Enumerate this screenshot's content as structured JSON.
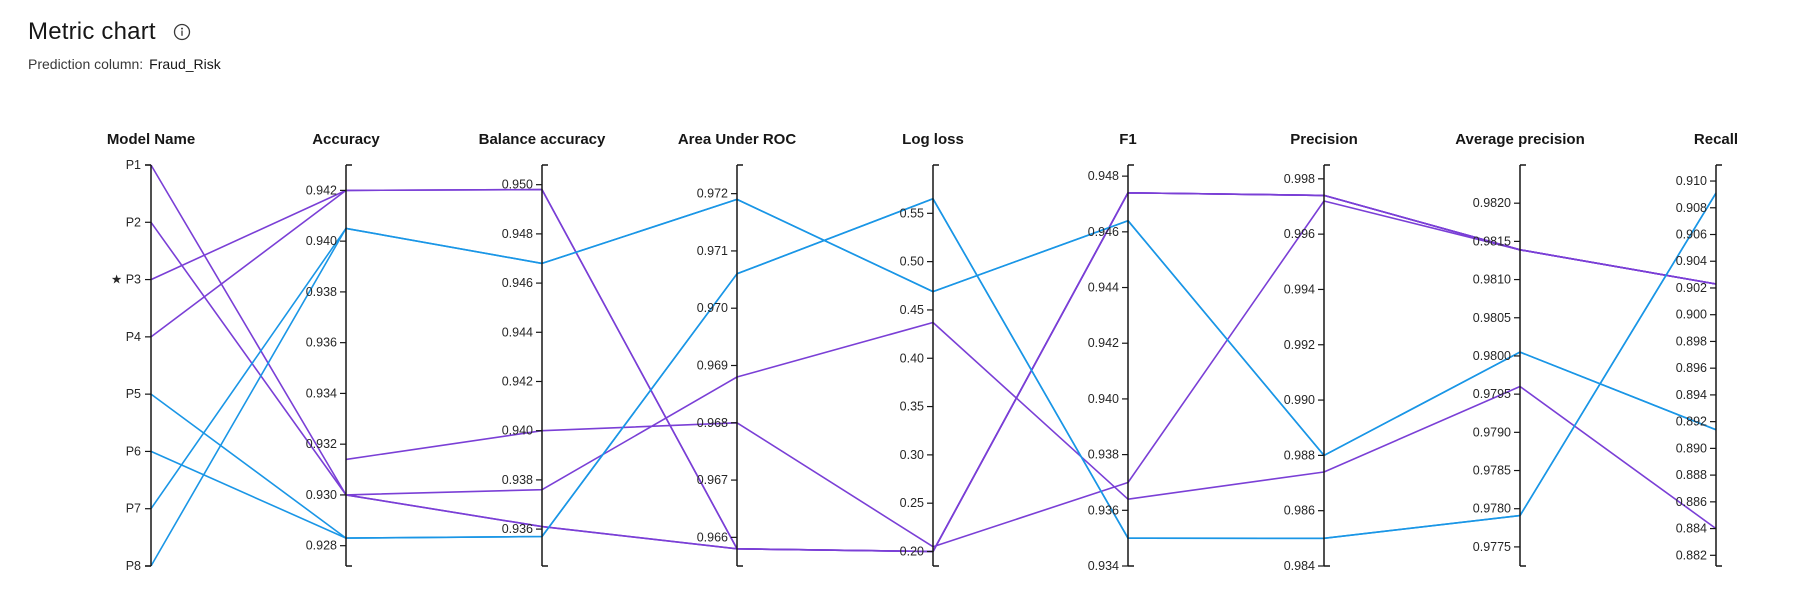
{
  "header": {
    "title": "Metric chart",
    "info_icon": "info-circle-icon",
    "subtitle_label": "Prediction column:",
    "subtitle_value": "Fraud_Risk"
  },
  "colors": {
    "purple": "#7a3fd6",
    "blue": "#1a96e6",
    "axis": "#161616"
  },
  "chart_data": {
    "type": "parallel-coordinates",
    "starred_model": "P3",
    "axes": [
      {
        "key": "model",
        "label": "Model Name",
        "categorical": true,
        "categories": [
          "P1",
          "P2",
          "P3",
          "P4",
          "P5",
          "P6",
          "P7",
          "P8"
        ]
      },
      {
        "key": "accuracy",
        "label": "Accuracy",
        "range": [
          0.9272,
          0.943
        ],
        "ticks": [
          0.928,
          0.93,
          0.932,
          0.934,
          0.936,
          0.938,
          0.94,
          0.942
        ],
        "decimals": 3
      },
      {
        "key": "balance",
        "label": "Balance accuracy",
        "range": [
          0.9345,
          0.9508
        ],
        "ticks": [
          0.936,
          0.938,
          0.94,
          0.942,
          0.944,
          0.946,
          0.948,
          0.95
        ],
        "decimals": 3
      },
      {
        "key": "auroc",
        "label": "Area Under ROC",
        "range": [
          0.9655,
          0.9725
        ],
        "ticks": [
          0.966,
          0.967,
          0.968,
          0.969,
          0.97,
          0.971,
          0.972
        ],
        "decimals": 3
      },
      {
        "key": "logloss",
        "label": "Log loss",
        "range": [
          0.185,
          0.6
        ],
        "ticks": [
          0.2,
          0.25,
          0.3,
          0.35,
          0.4,
          0.45,
          0.5,
          0.55
        ],
        "decimals": 2
      },
      {
        "key": "f1",
        "label": "F1",
        "range": [
          0.934,
          0.9484
        ],
        "ticks": [
          0.934,
          0.936,
          0.938,
          0.94,
          0.942,
          0.944,
          0.946,
          0.948
        ],
        "decimals": 3
      },
      {
        "key": "precision",
        "label": "Precision",
        "range": [
          0.984,
          0.9985
        ],
        "ticks": [
          0.984,
          0.986,
          0.988,
          0.99,
          0.992,
          0.994,
          0.996,
          0.998
        ],
        "decimals": 3
      },
      {
        "key": "avgprec",
        "label": "Average precision",
        "range": [
          0.97725,
          0.9825
        ],
        "ticks": [
          0.9775,
          0.978,
          0.9785,
          0.979,
          0.9795,
          0.98,
          0.9805,
          0.981,
          0.9815,
          0.982
        ],
        "decimals": 4
      },
      {
        "key": "recall",
        "label": "Recall",
        "range": [
          0.8812,
          0.9112
        ],
        "ticks": [
          0.882,
          0.884,
          0.886,
          0.888,
          0.89,
          0.892,
          0.894,
          0.896,
          0.898,
          0.9,
          0.902,
          0.904,
          0.906,
          0.908,
          0.91
        ],
        "decimals": 3
      }
    ],
    "series": [
      {
        "name": "P1",
        "color": "purple",
        "values": {
          "accuracy": 0.93,
          "balance": 0.9361,
          "auroc": 0.9658,
          "logloss": 0.2,
          "f1": 0.9474,
          "precision": 0.9974,
          "avgprec": 0.98139,
          "recall": 0.9023
        }
      },
      {
        "name": "P2",
        "color": "purple",
        "values": {
          "accuracy": 0.93,
          "balance": 0.9361,
          "auroc": 0.9658,
          "logloss": 0.2,
          "f1": 0.9474,
          "precision": 0.9974,
          "avgprec": 0.98139,
          "recall": 0.9023
        }
      },
      {
        "name": "P3",
        "color": "purple",
        "values": {
          "accuracy": 0.942,
          "balance": 0.9498,
          "auroc": 0.9658,
          "logloss": 0.2,
          "f1": 0.9474,
          "precision": 0.9974,
          "avgprec": 0.98139,
          "recall": 0.9023
        }
      },
      {
        "name": "P4",
        "color": "purple",
        "values": {
          "accuracy": 0.942,
          "balance": 0.9498,
          "auroc": 0.9658,
          "logloss": 0.2,
          "f1": 0.9474,
          "precision": 0.9974,
          "avgprec": 0.98139,
          "recall": 0.9023
        }
      },
      {
        "name": "P5",
        "color": "blue",
        "values": {
          "accuracy": 0.9283,
          "balance": 0.9357,
          "auroc": 0.9706,
          "logloss": 0.565,
          "f1": 0.935,
          "precision": 0.985,
          "avgprec": 0.97791,
          "recall": 0.9091
        }
      },
      {
        "name": "P6",
        "color": "blue",
        "values": {
          "accuracy": 0.9283,
          "balance": 0.9357,
          "auroc": 0.9706,
          "logloss": 0.565,
          "f1": 0.935,
          "precision": 0.985,
          "avgprec": 0.97791,
          "recall": 0.9091
        }
      },
      {
        "name": "P7",
        "color": "blue",
        "values": {
          "accuracy": 0.9405,
          "balance": 0.9468,
          "auroc": 0.9719,
          "logloss": 0.469,
          "f1": 0.9464,
          "precision": 0.988,
          "avgprec": 0.98005,
          "recall": 0.8914
        }
      },
      {
        "name": "P8",
        "color": "blue",
        "values": {
          "accuracy": 0.9405,
          "balance": 0.9468,
          "auroc": 0.9719,
          "logloss": 0.469,
          "f1": 0.9464,
          "precision": 0.988,
          "avgprec": 0.98005,
          "recall": 0.8914
        }
      }
    ],
    "extra_lines": [
      {
        "name": "purple-mid-a",
        "color": "purple",
        "values": {
          "accuracy": 0.9314,
          "balance": 0.94,
          "auroc": 0.968,
          "logloss": 0.205,
          "f1": 0.937,
          "precision": 0.9972,
          "avgprec": 0.98139,
          "recall": 0.9023
        }
      },
      {
        "name": "purple-mid-b",
        "color": "purple",
        "values": {
          "accuracy": 0.93,
          "balance": 0.9376,
          "auroc": 0.9688,
          "logloss": 0.437,
          "f1": 0.9364,
          "precision": 0.9874,
          "avgprec": 0.9796,
          "recall": 0.884
        }
      }
    ]
  }
}
